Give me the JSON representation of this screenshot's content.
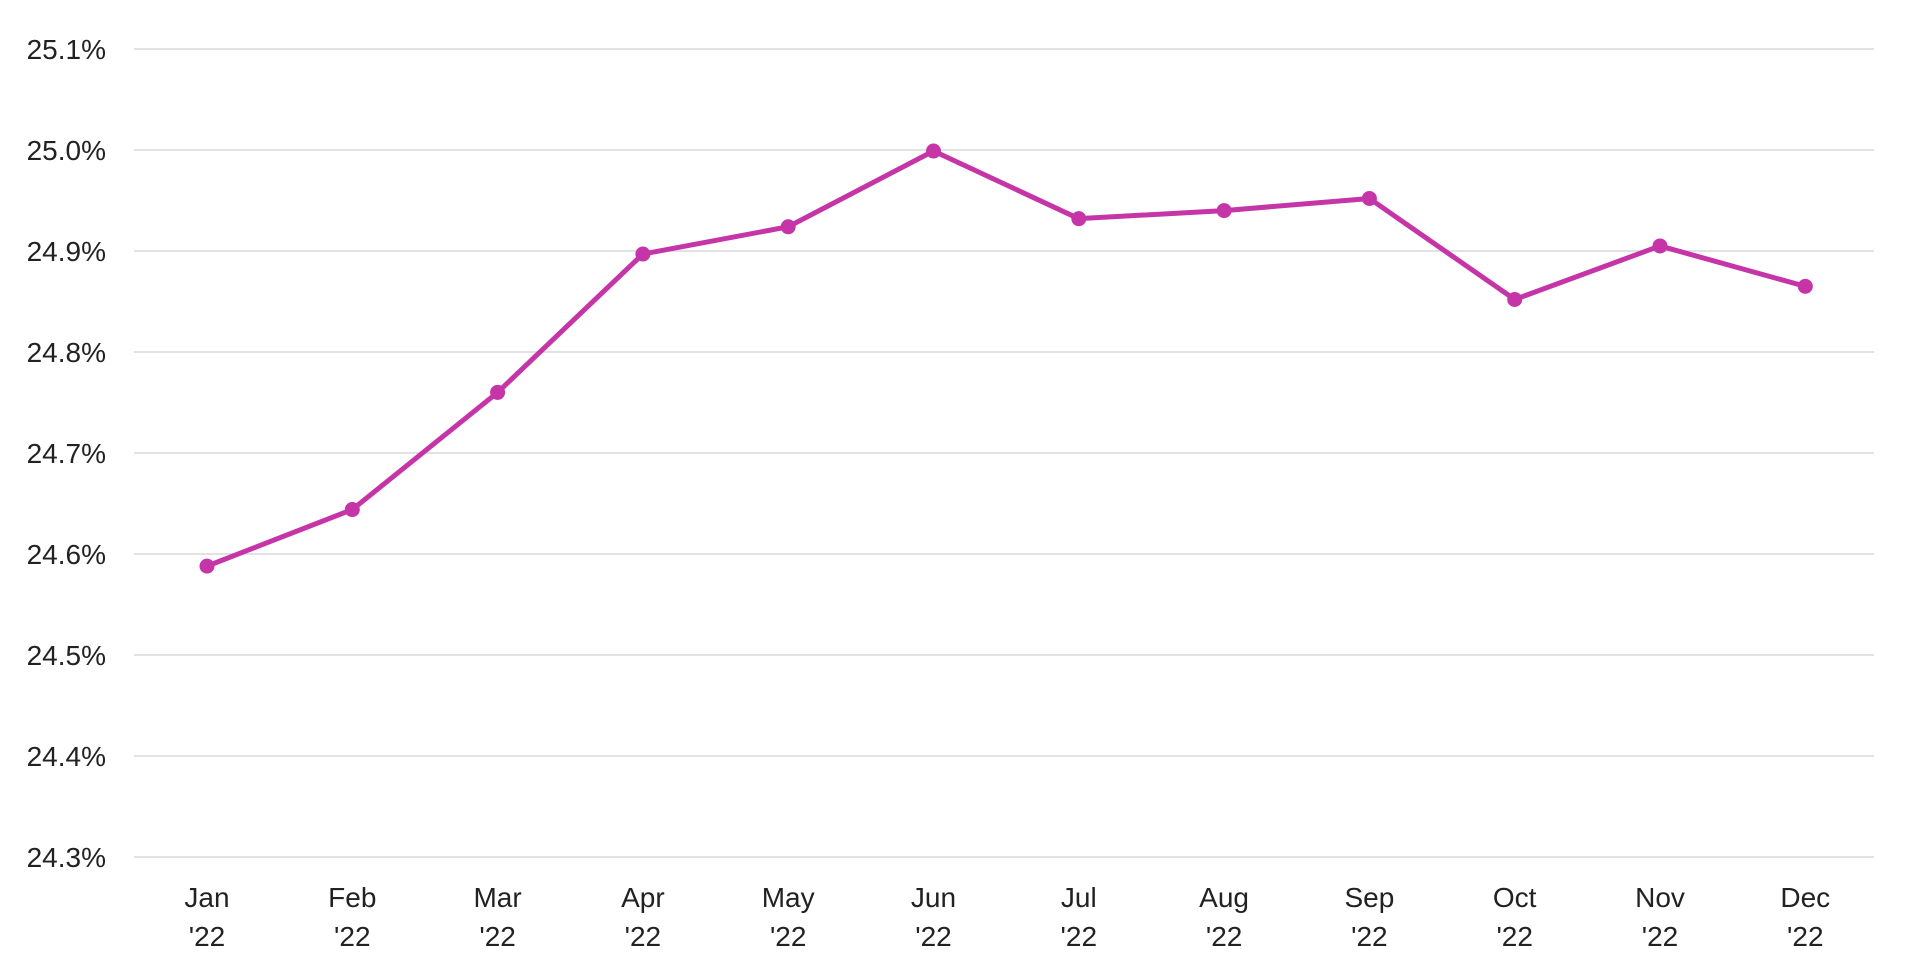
{
  "chart_data": {
    "type": "line",
    "categories": [
      [
        "Jan",
        "'22"
      ],
      [
        "Feb",
        "'22"
      ],
      [
        "Mar",
        "'22"
      ],
      [
        "Apr",
        "'22"
      ],
      [
        "May",
        "'22"
      ],
      [
        "Jun",
        "'22"
      ],
      [
        "Jul",
        "'22"
      ],
      [
        "Aug",
        "'22"
      ],
      [
        "Sep",
        "'22"
      ],
      [
        "Oct",
        "'22"
      ],
      [
        "Nov",
        "'22"
      ],
      [
        "Dec",
        "'22"
      ]
    ],
    "series": [
      {
        "values": [
          24.588,
          24.644,
          24.76,
          24.897,
          24.924,
          24.999,
          24.932,
          24.94,
          24.952,
          24.852,
          24.905,
          24.865
        ]
      }
    ],
    "y_ticks": [
      24.3,
      24.4,
      24.5,
      24.6,
      24.7,
      24.8,
      24.9,
      25.0,
      25.1
    ],
    "y_tick_labels": [
      "24.3%",
      "24.4%",
      "24.5%",
      "24.6%",
      "24.7%",
      "24.8%",
      "24.9%",
      "25.0%",
      "25.1%"
    ],
    "ylim": [
      24.3,
      25.1
    ],
    "title": "",
    "xlabel": "",
    "ylabel": "",
    "grid": "horizontal",
    "legend": "none",
    "colors": {
      "line": "#c535a8",
      "grid": "#d9d9d9",
      "text": "#222222"
    }
  }
}
